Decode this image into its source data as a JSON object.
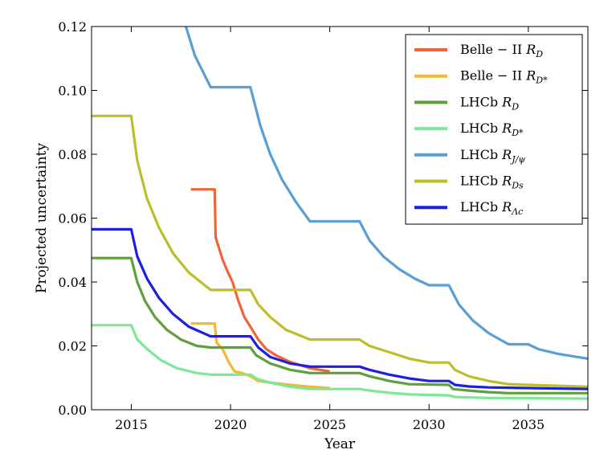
{
  "chart_data": {
    "type": "line",
    "title": "",
    "xlabel": "Year",
    "ylabel": "Projected uncertainty",
    "xlim": [
      2013,
      2038
    ],
    "ylim": [
      0,
      0.12
    ],
    "xticks": [
      2015,
      2020,
      2025,
      2030,
      2035
    ],
    "xtick_labels": [
      "2015",
      "2020",
      "2025",
      "2030",
      "2035"
    ],
    "yticks": [
      0.0,
      0.02,
      0.04,
      0.06,
      0.08,
      0.1,
      0.12
    ],
    "ytick_labels": [
      "0.00",
      "0.02",
      "0.04",
      "0.06",
      "0.08",
      "0.10",
      "0.12"
    ],
    "grid": false,
    "legend_position": "top-right",
    "series": [
      {
        "name": "Belle − II  R_D",
        "legend_main": "Belle − II",
        "legend_sym": "R",
        "legend_sub": "D",
        "color": "#f0643a",
        "points": [
          [
            2018.0,
            0.069
          ],
          [
            2019.2,
            0.069
          ],
          [
            2019.25,
            0.054
          ],
          [
            2019.4,
            0.051
          ],
          [
            2019.6,
            0.047
          ],
          [
            2019.8,
            0.044
          ],
          [
            2020.1,
            0.04
          ],
          [
            2020.4,
            0.034
          ],
          [
            2020.7,
            0.029
          ],
          [
            2021.0,
            0.026
          ],
          [
            2021.4,
            0.022
          ],
          [
            2021.8,
            0.019
          ],
          [
            2022.3,
            0.017
          ],
          [
            2023.0,
            0.015
          ],
          [
            2024.0,
            0.013
          ],
          [
            2025.0,
            0.012
          ]
        ]
      },
      {
        "name": "Belle − II  R_D*",
        "legend_main": "Belle − II",
        "legend_sym": "R",
        "legend_sub": "D*",
        "color": "#f5b731",
        "points": [
          [
            2018.0,
            0.027
          ],
          [
            2019.2,
            0.027
          ],
          [
            2019.3,
            0.021
          ],
          [
            2019.6,
            0.019
          ],
          [
            2019.9,
            0.015
          ],
          [
            2020.2,
            0.012
          ],
          [
            2020.6,
            0.0115
          ],
          [
            2021.0,
            0.0105
          ],
          [
            2021.4,
            0.009
          ],
          [
            2022.0,
            0.0085
          ],
          [
            2023.0,
            0.0078
          ],
          [
            2024.0,
            0.0072
          ],
          [
            2025.0,
            0.0068
          ]
        ]
      },
      {
        "name": "LHCb  R_D",
        "legend_main": "LHCb",
        "legend_sym": "R",
        "legend_sub": "D",
        "color": "#5fa03e",
        "points": [
          [
            2013.0,
            0.0475
          ],
          [
            2015.0,
            0.0475
          ],
          [
            2015.3,
            0.04
          ],
          [
            2015.7,
            0.034
          ],
          [
            2016.2,
            0.029
          ],
          [
            2016.8,
            0.025
          ],
          [
            2017.5,
            0.022
          ],
          [
            2018.3,
            0.02
          ],
          [
            2019.0,
            0.0195
          ],
          [
            2021.0,
            0.0195
          ],
          [
            2021.3,
            0.017
          ],
          [
            2022.0,
            0.0145
          ],
          [
            2023.0,
            0.0125
          ],
          [
            2024.0,
            0.0115
          ],
          [
            2026.5,
            0.0115
          ],
          [
            2027.0,
            0.0105
          ],
          [
            2028.0,
            0.009
          ],
          [
            2029.0,
            0.008
          ],
          [
            2031.0,
            0.0078
          ],
          [
            2031.2,
            0.0065
          ],
          [
            2032.0,
            0.006
          ],
          [
            2033.0,
            0.0055
          ],
          [
            2034.0,
            0.0052
          ],
          [
            2038.0,
            0.0052
          ]
        ]
      },
      {
        "name": "LHCb  R_D*",
        "legend_main": "LHCb",
        "legend_sym": "R",
        "legend_sub": "D*",
        "color": "#7de896",
        "points": [
          [
            2013.0,
            0.0265
          ],
          [
            2015.0,
            0.0265
          ],
          [
            2015.3,
            0.022
          ],
          [
            2015.8,
            0.019
          ],
          [
            2016.5,
            0.0155
          ],
          [
            2017.3,
            0.013
          ],
          [
            2018.3,
            0.0115
          ],
          [
            2019.0,
            0.011
          ],
          [
            2021.0,
            0.011
          ],
          [
            2021.4,
            0.0095
          ],
          [
            2022.0,
            0.0085
          ],
          [
            2023.0,
            0.0072
          ],
          [
            2024.0,
            0.0065
          ],
          [
            2026.5,
            0.0065
          ],
          [
            2027.0,
            0.006
          ],
          [
            2028.0,
            0.0053
          ],
          [
            2029.0,
            0.0048
          ],
          [
            2031.0,
            0.0045
          ],
          [
            2031.3,
            0.004
          ],
          [
            2033.0,
            0.0037
          ],
          [
            2038.0,
            0.0035
          ]
        ]
      },
      {
        "name": "LHCb  R_J/ψ",
        "legend_main": "LHCb",
        "legend_sym": "R",
        "legend_sub": "J/ψ",
        "color": "#5a9fd4",
        "points": [
          [
            2017.7,
            0.121
          ],
          [
            2018.2,
            0.111
          ],
          [
            2018.6,
            0.106
          ],
          [
            2019.0,
            0.101
          ],
          [
            2021.0,
            0.101
          ],
          [
            2021.5,
            0.089
          ],
          [
            2022.0,
            0.08
          ],
          [
            2022.6,
            0.072
          ],
          [
            2023.3,
            0.065
          ],
          [
            2024.0,
            0.059
          ],
          [
            2026.5,
            0.059
          ],
          [
            2027.0,
            0.053
          ],
          [
            2027.7,
            0.048
          ],
          [
            2028.5,
            0.044
          ],
          [
            2029.3,
            0.041
          ],
          [
            2030.0,
            0.039
          ],
          [
            2031.0,
            0.039
          ],
          [
            2031.5,
            0.033
          ],
          [
            2032.2,
            0.028
          ],
          [
            2033.0,
            0.024
          ],
          [
            2034.0,
            0.0205
          ],
          [
            2035.0,
            0.0205
          ],
          [
            2035.5,
            0.019
          ],
          [
            2036.5,
            0.0175
          ],
          [
            2037.5,
            0.0165
          ],
          [
            2038.0,
            0.016
          ]
        ]
      },
      {
        "name": "LHCb  R_Ds",
        "legend_main": "LHCb",
        "legend_sym": "R",
        "legend_sub": "Ds",
        "color": "#bcbf2a",
        "points": [
          [
            2013.0,
            0.092
          ],
          [
            2015.0,
            0.092
          ],
          [
            2015.3,
            0.078
          ],
          [
            2015.8,
            0.066
          ],
          [
            2016.4,
            0.057
          ],
          [
            2017.1,
            0.049
          ],
          [
            2017.9,
            0.043
          ],
          [
            2018.6,
            0.0395
          ],
          [
            2019.0,
            0.0375
          ],
          [
            2021.0,
            0.0375
          ],
          [
            2021.4,
            0.033
          ],
          [
            2022.0,
            0.029
          ],
          [
            2022.8,
            0.025
          ],
          [
            2024.0,
            0.022
          ],
          [
            2026.5,
            0.022
          ],
          [
            2027.0,
            0.02
          ],
          [
            2028.0,
            0.018
          ],
          [
            2029.0,
            0.016
          ],
          [
            2030.0,
            0.0148
          ],
          [
            2031.0,
            0.0148
          ],
          [
            2031.3,
            0.0125
          ],
          [
            2032.0,
            0.0105
          ],
          [
            2033.0,
            0.009
          ],
          [
            2034.0,
            0.008
          ],
          [
            2035.0,
            0.0078
          ],
          [
            2038.0,
            0.0072
          ]
        ]
      },
      {
        "name": "LHCb  R_Λc",
        "legend_main": "LHCb",
        "legend_sym": "R",
        "legend_sub": "Λc",
        "color": "#1f1fe0",
        "points": [
          [
            2013.0,
            0.0565
          ],
          [
            2015.0,
            0.0565
          ],
          [
            2015.3,
            0.048
          ],
          [
            2015.8,
            0.041
          ],
          [
            2016.4,
            0.035
          ],
          [
            2017.1,
            0.03
          ],
          [
            2017.9,
            0.026
          ],
          [
            2019.0,
            0.023
          ],
          [
            2021.0,
            0.023
          ],
          [
            2021.4,
            0.0195
          ],
          [
            2022.0,
            0.0165
          ],
          [
            2023.0,
            0.0145
          ],
          [
            2024.0,
            0.0135
          ],
          [
            2026.5,
            0.0135
          ],
          [
            2027.0,
            0.0125
          ],
          [
            2028.0,
            0.011
          ],
          [
            2029.0,
            0.0098
          ],
          [
            2030.0,
            0.009
          ],
          [
            2031.0,
            0.009
          ],
          [
            2031.3,
            0.0078
          ],
          [
            2032.0,
            0.0073
          ],
          [
            2033.0,
            0.007
          ],
          [
            2035.0,
            0.0068
          ],
          [
            2038.0,
            0.0065
          ]
        ]
      }
    ]
  }
}
